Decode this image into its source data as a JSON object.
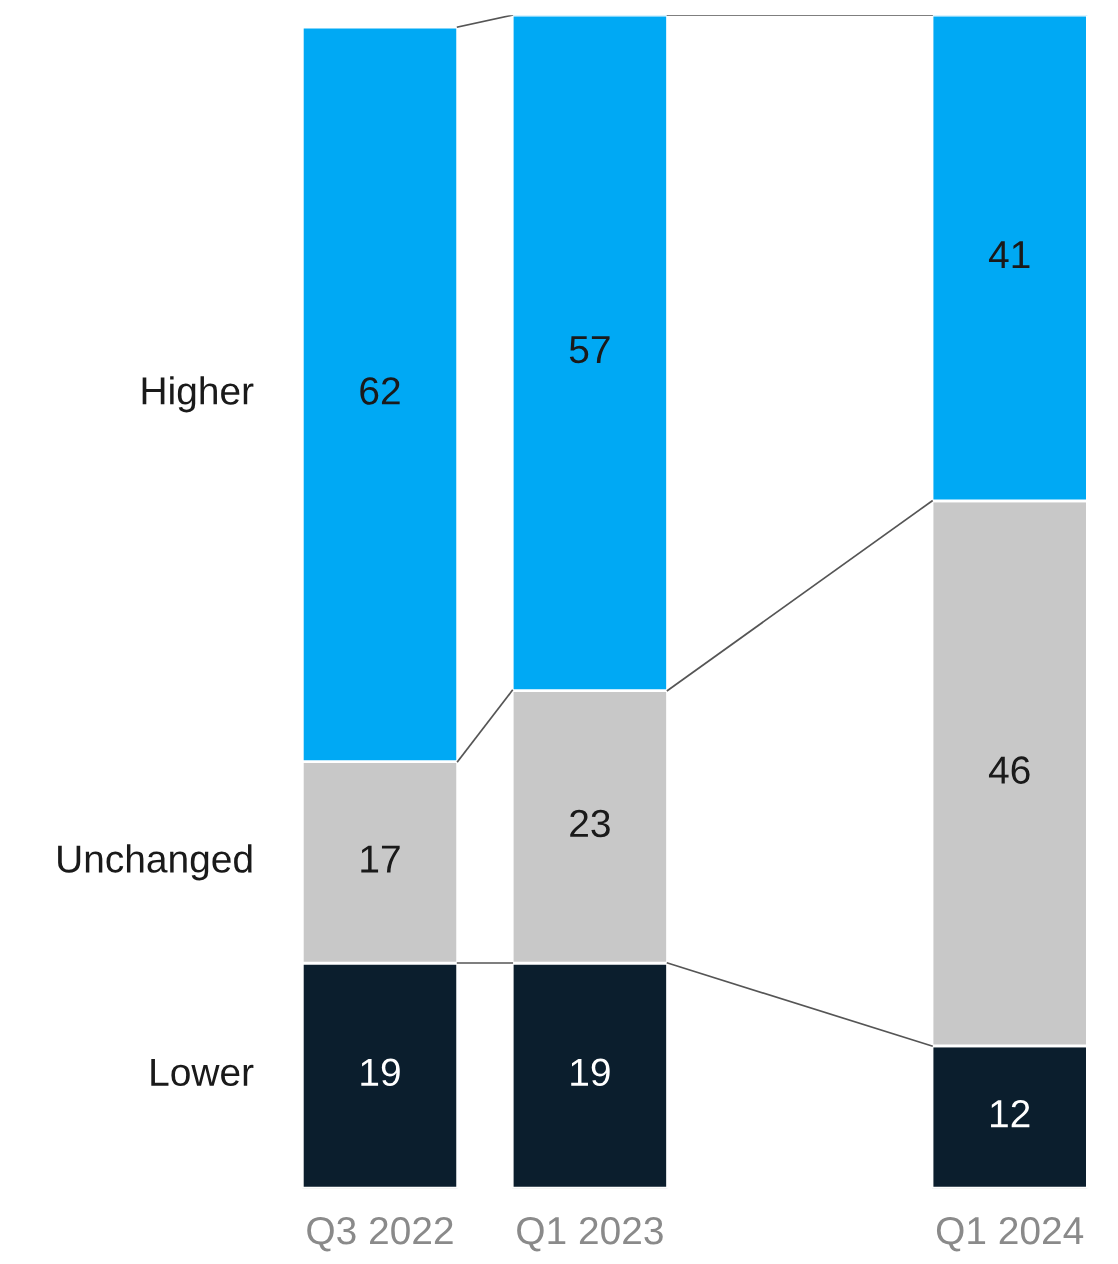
{
  "chart_data": {
    "type": "bar",
    "stacked": true,
    "data_labels": true,
    "categories": [
      "Q3 2022",
      "Q1 2023",
      null,
      "Q1 2024"
    ],
    "series": [
      {
        "name": "Lower",
        "color": "#0b1e2d",
        "values": [
          19,
          19,
          null,
          12
        ]
      },
      {
        "name": "Unchanged",
        "color": "#c8c8c8",
        "values": [
          17,
          23,
          null,
          46
        ]
      },
      {
        "name": "Higher",
        "color": "#00a9f4",
        "values": [
          62,
          57,
          null,
          41
        ]
      }
    ]
  }
}
